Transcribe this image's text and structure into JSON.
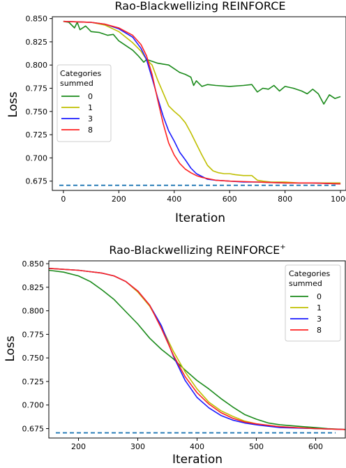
{
  "chart_data": [
    {
      "type": "line",
      "title": "Rao-Blackwellizing REINFORCE",
      "xlabel": "Iteration",
      "ylabel": "Loss",
      "xlim": [
        -40,
        1020
      ],
      "ylim": [
        0.665,
        0.852
      ],
      "xticks": [
        0,
        200,
        400,
        600,
        800,
        1000
      ],
      "yticks": [
        0.675,
        0.7,
        0.725,
        0.75,
        0.775,
        0.8,
        0.825,
        0.85
      ],
      "xtick_labels": [
        "0",
        "200",
        "400",
        "600",
        "800",
        "1000"
      ],
      "ytick_labels": [
        "0.675",
        "0.700",
        "0.725",
        "0.750",
        "0.775",
        "0.800",
        "0.825",
        "0.850"
      ],
      "legend": {
        "title_lines": [
          "Categories",
          "summed"
        ],
        "position": "center-left"
      },
      "reference_line": {
        "y": 0.6705,
        "style": "dashed",
        "color": "#1f77b4"
      },
      "series": [
        {
          "name": "0",
          "color": "#1a8a1a",
          "x": [
            0,
            20,
            40,
            50,
            60,
            80,
            100,
            130,
            160,
            180,
            200,
            230,
            250,
            270,
            290,
            300,
            320,
            340,
            360,
            380,
            400,
            420,
            440,
            460,
            470,
            480,
            500,
            520,
            550,
            600,
            650,
            680,
            700,
            720,
            740,
            760,
            780,
            800,
            830,
            860,
            880,
            900,
            920,
            940,
            960,
            980,
            1000
          ],
          "y": [
            0.847,
            0.846,
            0.84,
            0.846,
            0.838,
            0.842,
            0.836,
            0.835,
            0.832,
            0.833,
            0.826,
            0.82,
            0.816,
            0.81,
            0.803,
            0.806,
            0.804,
            0.802,
            0.801,
            0.8,
            0.796,
            0.792,
            0.79,
            0.787,
            0.778,
            0.783,
            0.777,
            0.779,
            0.778,
            0.777,
            0.778,
            0.779,
            0.771,
            0.775,
            0.774,
            0.778,
            0.772,
            0.777,
            0.775,
            0.772,
            0.769,
            0.774,
            0.769,
            0.758,
            0.768,
            0.764,
            0.766
          ]
        },
        {
          "name": "1",
          "color": "#bfbf00",
          "x": [
            0,
            100,
            150,
            200,
            250,
            280,
            300,
            320,
            340,
            360,
            380,
            400,
            420,
            440,
            460,
            480,
            500,
            520,
            540,
            560,
            580,
            600,
            620,
            650,
            680,
            700,
            720,
            750,
            800,
            850,
            900,
            950,
            1000
          ],
          "y": [
            0.847,
            0.846,
            0.843,
            0.836,
            0.824,
            0.815,
            0.806,
            0.8,
            0.784,
            0.77,
            0.756,
            0.75,
            0.745,
            0.738,
            0.727,
            0.715,
            0.703,
            0.692,
            0.686,
            0.684,
            0.683,
            0.683,
            0.682,
            0.681,
            0.681,
            0.676,
            0.675,
            0.674,
            0.674,
            0.673,
            0.673,
            0.673,
            0.673
          ]
        },
        {
          "name": "3",
          "color": "#1a1aff",
          "x": [
            0,
            100,
            150,
            200,
            250,
            280,
            300,
            320,
            340,
            360,
            380,
            400,
            420,
            440,
            460,
            480,
            500,
            520,
            550,
            600,
            650,
            700,
            800,
            900,
            1000
          ],
          "y": [
            0.847,
            0.846,
            0.844,
            0.839,
            0.83,
            0.818,
            0.806,
            0.786,
            0.765,
            0.745,
            0.729,
            0.718,
            0.706,
            0.698,
            0.689,
            0.683,
            0.68,
            0.677,
            0.676,
            0.675,
            0.674,
            0.674,
            0.673,
            0.673,
            0.672
          ]
        },
        {
          "name": "8",
          "color": "#ff2020",
          "x": [
            0,
            100,
            150,
            200,
            250,
            280,
            300,
            320,
            340,
            360,
            380,
            400,
            420,
            440,
            460,
            480,
            500,
            550,
            600,
            700,
            800,
            900,
            1000
          ],
          "y": [
            0.847,
            0.846,
            0.844,
            0.84,
            0.832,
            0.822,
            0.81,
            0.79,
            0.763,
            0.737,
            0.716,
            0.703,
            0.694,
            0.688,
            0.684,
            0.681,
            0.679,
            0.676,
            0.675,
            0.674,
            0.673,
            0.673,
            0.672
          ]
        }
      ]
    },
    {
      "type": "line",
      "title": "Rao-Blackwellizing REINFORCE",
      "title_superscript": "+",
      "xlabel": "Iteration",
      "ylabel": "Loss",
      "xlim": [
        150,
        650
      ],
      "ylim": [
        0.665,
        0.853
      ],
      "xticks": [
        200,
        300,
        400,
        500,
        600
      ],
      "yticks": [
        0.675,
        0.7,
        0.725,
        0.75,
        0.775,
        0.8,
        0.825,
        0.85
      ],
      "xtick_labels": [
        "200",
        "300",
        "400",
        "500",
        "600"
      ],
      "ytick_labels": [
        "0.675",
        "0.700",
        "0.725",
        "0.750",
        "0.775",
        "0.800",
        "0.825",
        "0.850"
      ],
      "legend": {
        "title_lines": [
          "Categories",
          "summed"
        ],
        "position": "top-right"
      },
      "reference_line": {
        "y": 0.6705,
        "style": "dashed",
        "color": "#1f77b4"
      },
      "series": [
        {
          "name": "0",
          "color": "#1a8a1a",
          "x": [
            150,
            175,
            200,
            220,
            240,
            260,
            280,
            300,
            320,
            340,
            360,
            380,
            400,
            420,
            440,
            460,
            480,
            500,
            520,
            540,
            560,
            580,
            600,
            620,
            650
          ],
          "y": [
            0.843,
            0.841,
            0.837,
            0.831,
            0.822,
            0.812,
            0.799,
            0.786,
            0.771,
            0.759,
            0.749,
            0.737,
            0.726,
            0.717,
            0.707,
            0.698,
            0.69,
            0.685,
            0.681,
            0.679,
            0.678,
            0.677,
            0.676,
            0.675,
            0.674
          ]
        },
        {
          "name": "1",
          "color": "#bfbf00",
          "x": [
            150,
            200,
            240,
            260,
            280,
            300,
            320,
            340,
            360,
            380,
            400,
            420,
            440,
            460,
            480,
            500,
            520,
            560,
            600,
            650
          ],
          "y": [
            0.845,
            0.843,
            0.84,
            0.837,
            0.831,
            0.82,
            0.805,
            0.783,
            0.757,
            0.735,
            0.717,
            0.703,
            0.694,
            0.688,
            0.683,
            0.68,
            0.678,
            0.676,
            0.675,
            0.674
          ]
        },
        {
          "name": "3",
          "color": "#1a1aff",
          "x": [
            150,
            200,
            240,
            260,
            280,
            300,
            320,
            340,
            360,
            380,
            400,
            420,
            440,
            460,
            480,
            500,
            540,
            600,
            650
          ],
          "y": [
            0.845,
            0.843,
            0.84,
            0.837,
            0.831,
            0.821,
            0.806,
            0.784,
            0.752,
            0.726,
            0.708,
            0.697,
            0.689,
            0.684,
            0.681,
            0.679,
            0.676,
            0.675,
            0.674
          ]
        },
        {
          "name": "8",
          "color": "#ff2020",
          "x": [
            150,
            200,
            240,
            260,
            280,
            300,
            320,
            340,
            360,
            380,
            400,
            420,
            440,
            460,
            480,
            500,
            540,
            600,
            650
          ],
          "y": [
            0.845,
            0.843,
            0.84,
            0.837,
            0.831,
            0.821,
            0.806,
            0.781,
            0.753,
            0.73,
            0.713,
            0.701,
            0.692,
            0.686,
            0.682,
            0.68,
            0.677,
            0.675,
            0.674
          ]
        }
      ]
    }
  ]
}
